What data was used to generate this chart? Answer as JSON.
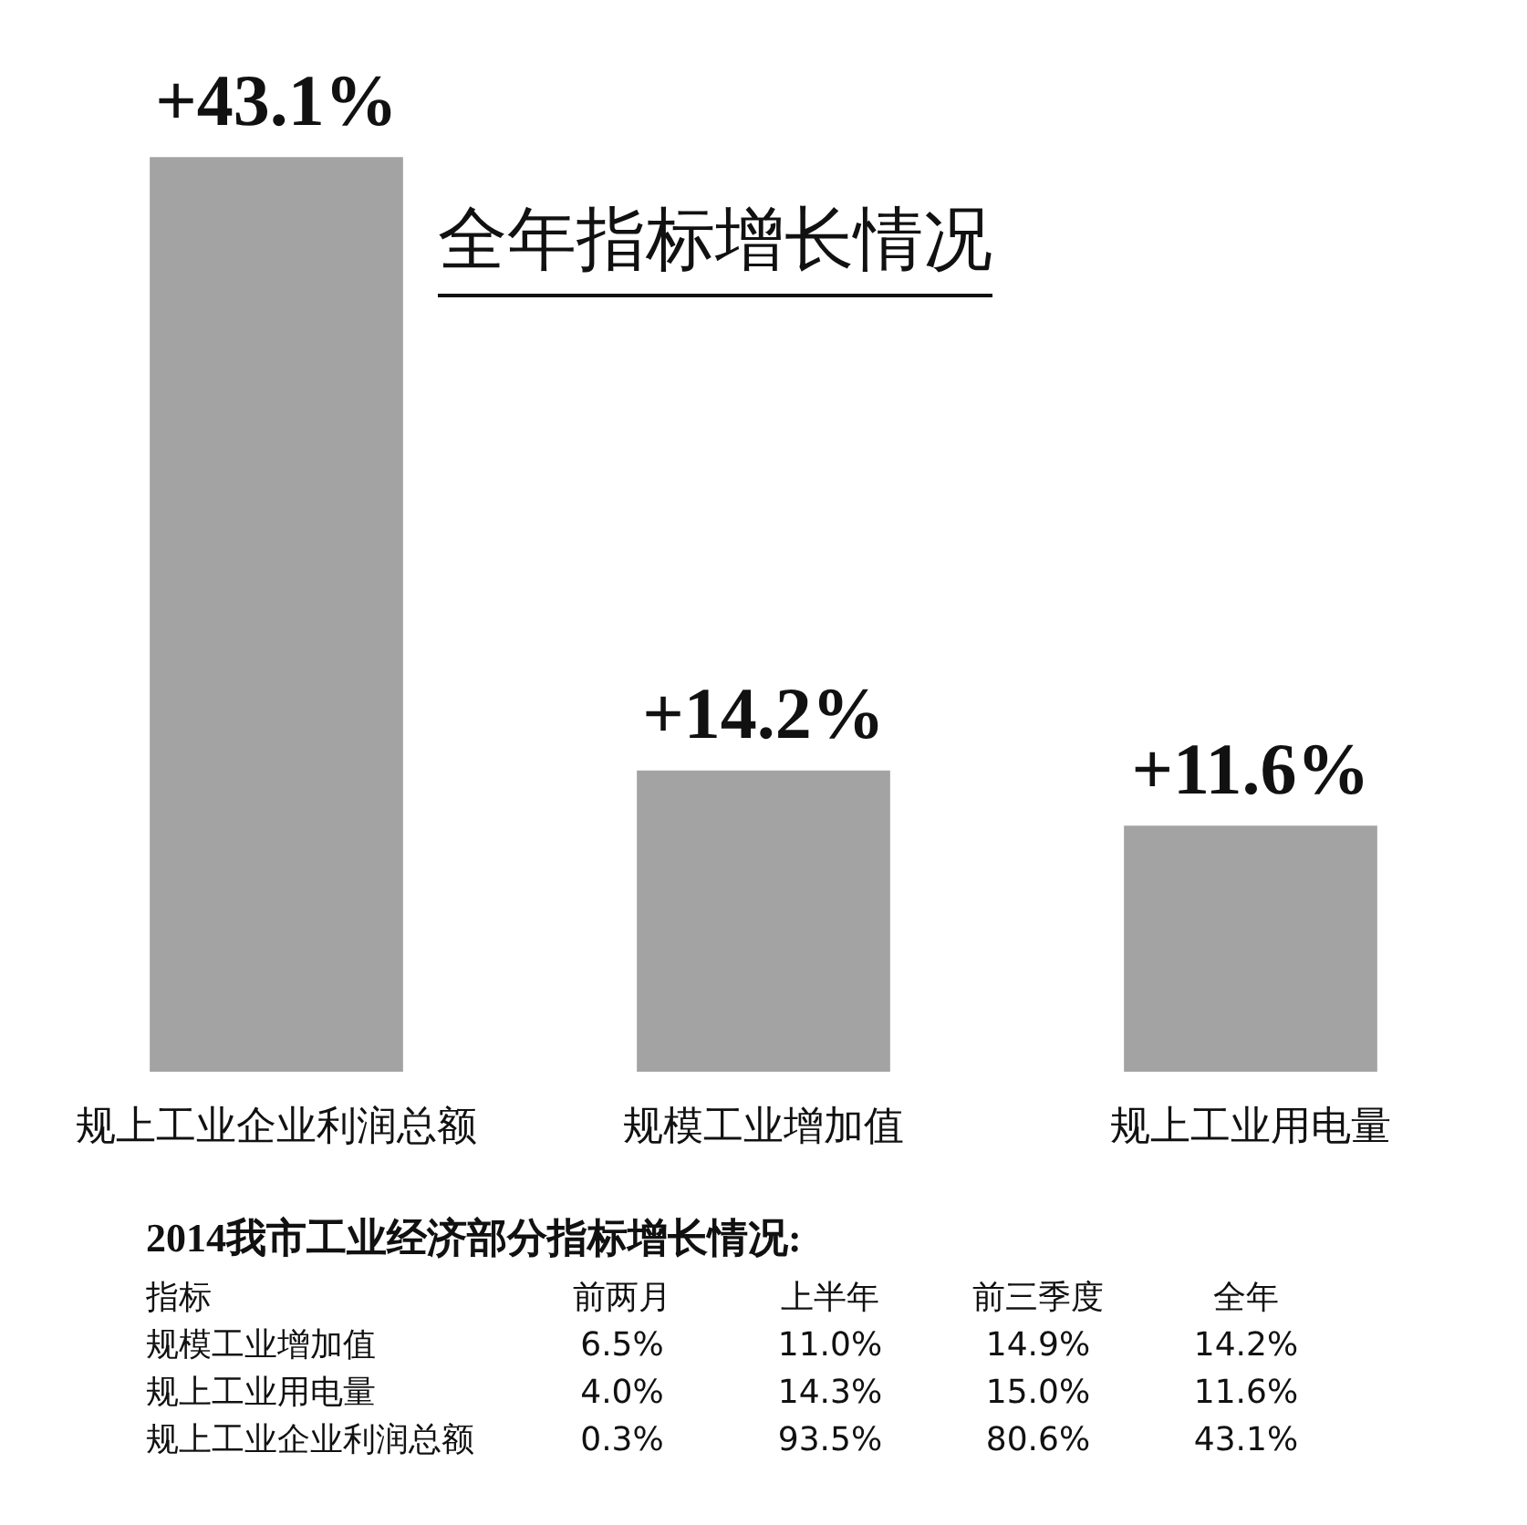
{
  "chart_data": [
    {
      "type": "bar",
      "title": "全年指标增长情况",
      "categories": [
        "规上工业企业利润总额",
        "规模工业增加值",
        "规上工业用电量"
      ],
      "values": [
        43.1,
        14.2,
        11.6
      ],
      "value_labels": [
        "+43.1%",
        "+14.2%",
        "+11.6%"
      ],
      "color": "#a3a3a3"
    },
    {
      "type": "other",
      "title": "2014我市工业经济部分指标增长情况:",
      "ylabel": "指标",
      "categories": [
        "前两月",
        "上半年",
        "前三季度",
        "全年"
      ],
      "series": [
        {
          "name": "规模工业增加值",
          "values": [
            6.5,
            11.0,
            14.9,
            14.2
          ],
          "value_labels": [
            "6.5%",
            "11.0%",
            "14.9%",
            "14.2%"
          ]
        },
        {
          "name": "规上工业用电量",
          "values": [
            4.0,
            14.3,
            15.0,
            11.6
          ],
          "value_labels": [
            "4.0%",
            "14.3%",
            "15.0%",
            "11.6%"
          ]
        },
        {
          "name": "规上工业企业利润总额",
          "values": [
            0.3,
            93.5,
            80.6,
            43.1
          ],
          "value_labels": [
            "0.3%",
            "93.5%",
            "80.6%",
            "43.1%"
          ]
        }
      ]
    }
  ]
}
